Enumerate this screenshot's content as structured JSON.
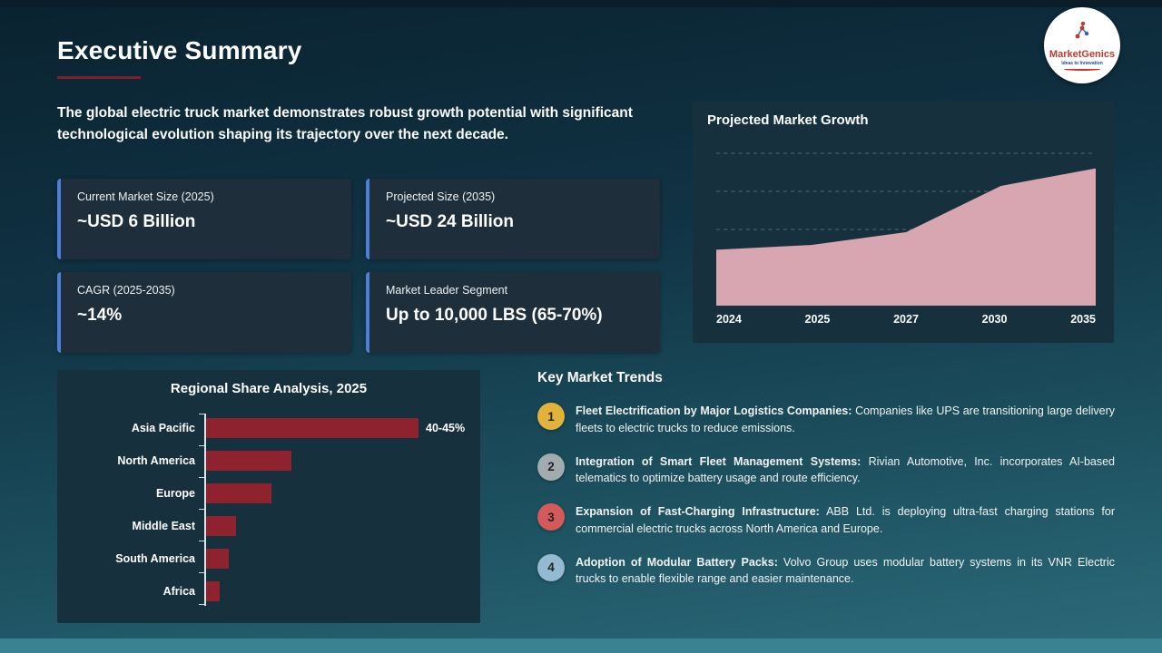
{
  "page": {
    "title": "Executive Summary",
    "intro": "The global electric truck market demonstrates robust growth potential with significant technological evolution shaping its trajectory over the next decade."
  },
  "logo": {
    "brand": "MarketGenics",
    "tagline": "Ideas to Innovation"
  },
  "kpi_cards": [
    {
      "label": "Current Market Size (2025)",
      "value": "~USD 6 Billion"
    },
    {
      "label": "Projected Size (2035)",
      "value": "~USD 24 Billion"
    },
    {
      "label": "CAGR (2025-2035)",
      "value": "~14%"
    },
    {
      "label": "Market Leader Segment",
      "value": "Up to 10,000 LBS (65-70%)"
    }
  ],
  "trends": {
    "heading": "Key Market Trends",
    "items": [
      {
        "number": "1",
        "color": "#e2b33c",
        "lead": "Fleet Electrification by Major Logistics Companies:",
        "body": "Companies like UPS are transitioning large delivery fleets to electric trucks to reduce emissions."
      },
      {
        "number": "2",
        "color": "#a2abae",
        "lead": "Integration of Smart Fleet Management Systems:",
        "body": "Rivian Automotive, Inc. incorporates AI-based telematics to optimize battery usage and route efficiency."
      },
      {
        "number": "3",
        "color": "#d25a5a",
        "lead": "Expansion of Fast-Charging Infrastructure:",
        "body": "ABB Ltd. is deploying ultra-fast charging stations for commercial electric trucks across North America and Europe."
      },
      {
        "number": "4",
        "color": "#93bad0",
        "lead": "Adoption of Modular Battery Packs:",
        "body": "Volvo Group uses modular battery systems in its VNR Electric trucks to enable flexible range and easier maintenance."
      }
    ]
  },
  "chart_data": [
    {
      "type": "area",
      "title": "Projected Market Growth",
      "x": [
        "2024",
        "2025",
        "2027",
        "2030",
        "2035"
      ],
      "values": [
        35,
        38,
        46,
        75,
        86
      ],
      "ylim": [
        0,
        100
      ],
      "xlabel": "",
      "ylabel": "",
      "grid": "dashed horizontal gridlines, y-axis unlabeled",
      "note": "values are relative heights (percent of plot height); axis shows years only",
      "fill_color": "#d7a6b0"
    },
    {
      "type": "bar",
      "title": "Regional Share Analysis, 2025",
      "orientation": "horizontal",
      "categories": [
        "Asia Pacific",
        "North America",
        "Europe",
        "Middle East",
        "South America",
        "Africa"
      ],
      "values": [
        42.5,
        17,
        13,
        6,
        4.5,
        2.7
      ],
      "unit": "%",
      "xlim": [
        0,
        50
      ],
      "data_label": {
        "category": "Asia Pacific",
        "text": "40-45%"
      },
      "bar_color": "#8e222e"
    }
  ]
}
